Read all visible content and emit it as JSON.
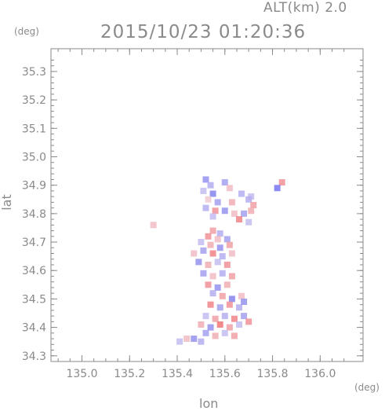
{
  "chart_data": {
    "type": "heatmap",
    "title": "2015/10/23 01:20:36",
    "altitude_label": "ALT(km) 2.0",
    "xlabel": "lon",
    "ylabel": "lat",
    "xunit": "(deg)",
    "yunit": "(deg)",
    "xlim": [
      134.87,
      136.18
    ],
    "ylim": [
      34.28,
      35.38
    ],
    "xticks": [
      "135.0",
      "135.2",
      "135.4",
      "135.6",
      "135.8",
      "136.0"
    ],
    "yticks": [
      "34.3",
      "34.4",
      "34.5",
      "34.6",
      "34.7",
      "34.8",
      "34.9",
      "35.0",
      "35.1",
      "35.2",
      "35.3"
    ],
    "colors": {
      "positive": "#f05a5a",
      "negative": "#5a5af0",
      "neutral": "#f0e6f0",
      "axis": "#8a8a8a"
    },
    "cells": [
      [
        135.52,
        34.92,
        -0.6
      ],
      [
        135.54,
        34.9,
        -0.4
      ],
      [
        135.6,
        34.91,
        -0.5
      ],
      [
        135.62,
        34.89,
        0.3
      ],
      [
        135.51,
        34.88,
        -0.3
      ],
      [
        135.55,
        34.87,
        -0.7
      ],
      [
        135.67,
        34.87,
        -0.4
      ],
      [
        135.71,
        34.86,
        -0.3
      ],
      [
        135.84,
        34.91,
        0.6
      ],
      [
        135.82,
        34.89,
        -0.8
      ],
      [
        135.53,
        34.85,
        0.2
      ],
      [
        135.57,
        34.84,
        -0.5
      ],
      [
        135.63,
        34.84,
        0.4
      ],
      [
        135.7,
        34.85,
        -0.4
      ],
      [
        135.72,
        34.83,
        0.5
      ],
      [
        135.52,
        34.82,
        -0.4
      ],
      [
        135.56,
        34.81,
        0.6
      ],
      [
        135.6,
        34.81,
        -0.6
      ],
      [
        135.64,
        34.8,
        0.3
      ],
      [
        135.68,
        34.8,
        -0.5
      ],
      [
        135.71,
        34.81,
        0.4
      ],
      [
        135.66,
        34.78,
        0.7
      ],
      [
        135.7,
        34.77,
        -0.3
      ],
      [
        135.3,
        34.76,
        0.3
      ],
      [
        135.55,
        34.79,
        -0.3
      ],
      [
        135.55,
        34.74,
        0.5
      ],
      [
        135.58,
        34.73,
        -0.4
      ],
      [
        135.53,
        34.72,
        0.6
      ],
      [
        135.57,
        34.71,
        0.3
      ],
      [
        135.61,
        34.71,
        -0.5
      ],
      [
        135.5,
        34.7,
        -0.3
      ],
      [
        135.54,
        34.69,
        0.4
      ],
      [
        135.58,
        34.68,
        -0.6
      ],
      [
        135.62,
        34.69,
        0.5
      ],
      [
        135.47,
        34.66,
        0.3
      ],
      [
        135.51,
        34.67,
        -0.5
      ],
      [
        135.55,
        34.66,
        0.7
      ],
      [
        135.59,
        34.65,
        -0.4
      ],
      [
        135.63,
        34.66,
        0.3
      ],
      [
        135.49,
        34.63,
        -0.6
      ],
      [
        135.53,
        34.62,
        0.4
      ],
      [
        135.57,
        34.63,
        -0.3
      ],
      [
        135.61,
        34.62,
        0.6
      ],
      [
        135.51,
        34.59,
        -0.5
      ],
      [
        135.55,
        34.58,
        0.3
      ],
      [
        135.59,
        34.59,
        -0.4
      ],
      [
        135.63,
        34.58,
        0.5
      ],
      [
        135.53,
        34.55,
        0.6
      ],
      [
        135.57,
        34.54,
        -0.6
      ],
      [
        135.61,
        34.55,
        0.4
      ],
      [
        135.55,
        34.52,
        -0.4
      ],
      [
        135.59,
        34.51,
        0.5
      ],
      [
        135.63,
        34.5,
        -0.7
      ],
      [
        135.67,
        34.51,
        0.3
      ],
      [
        135.54,
        34.48,
        0.7
      ],
      [
        135.58,
        34.47,
        -0.5
      ],
      [
        135.62,
        34.48,
        0.6
      ],
      [
        135.66,
        34.47,
        -0.4
      ],
      [
        135.68,
        34.49,
        -0.6
      ],
      [
        135.52,
        34.44,
        -0.3
      ],
      [
        135.56,
        34.43,
        0.5
      ],
      [
        135.6,
        34.44,
        -0.4
      ],
      [
        135.64,
        34.43,
        0.7
      ],
      [
        135.68,
        34.44,
        -0.5
      ],
      [
        135.5,
        34.41,
        0.4
      ],
      [
        135.54,
        34.4,
        -0.6
      ],
      [
        135.58,
        34.41,
        0.8
      ],
      [
        135.62,
        34.4,
        0.5
      ],
      [
        135.66,
        34.41,
        -0.3
      ],
      [
        135.7,
        34.42,
        0.6
      ],
      [
        135.52,
        34.38,
        -0.5
      ],
      [
        135.56,
        34.37,
        0.4
      ],
      [
        135.6,
        34.38,
        -0.3
      ],
      [
        135.64,
        34.37,
        0.5
      ],
      [
        135.47,
        34.36,
        -0.6
      ],
      [
        135.5,
        34.35,
        -0.4
      ],
      [
        135.44,
        34.36,
        0.3
      ],
      [
        135.41,
        34.35,
        -0.3
      ]
    ]
  }
}
